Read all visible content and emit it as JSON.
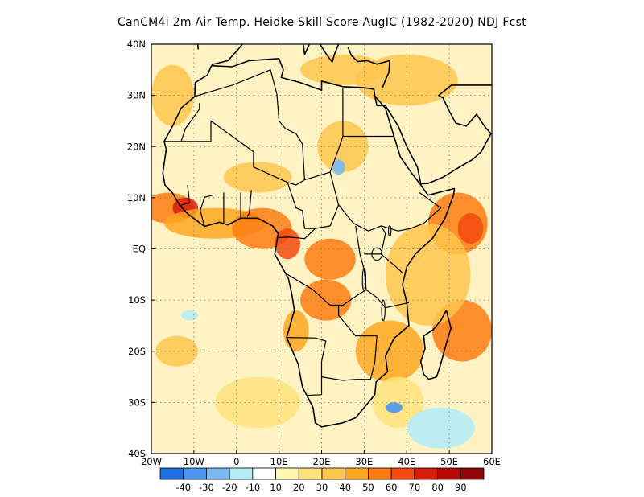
{
  "title": "CanCM4i  2m Air Temp. Heidke Skill Score AugIC (1982-2020) NDJ Fcst",
  "map": {
    "lon_range": [
      -20,
      60
    ],
    "lat_range": [
      -40,
      40
    ],
    "lat_labels": [
      {
        "value": 40,
        "label": "40N"
      },
      {
        "value": 30,
        "label": "30N"
      },
      {
        "value": 20,
        "label": "20N"
      },
      {
        "value": 10,
        "label": "10N"
      },
      {
        "value": 0,
        "label": "EQ"
      },
      {
        "value": -10,
        "label": "10S"
      },
      {
        "value": -20,
        "label": "20S"
      },
      {
        "value": -30,
        "label": "30S"
      },
      {
        "value": -40,
        "label": "40S"
      }
    ],
    "lon_labels": [
      {
        "value": -20,
        "label": "20W"
      },
      {
        "value": -10,
        "label": "10W"
      },
      {
        "value": 0,
        "label": "0"
      },
      {
        "value": 10,
        "label": "10E"
      },
      {
        "value": 20,
        "label": "20E"
      },
      {
        "value": 30,
        "label": "30E"
      },
      {
        "value": 40,
        "label": "40E"
      },
      {
        "value": 50,
        "label": "50E"
      },
      {
        "value": 60,
        "label": "60E"
      }
    ],
    "grid": "dotted",
    "coastline_color": "#000000"
  },
  "colorbar": {
    "colors": [
      "#1f6fe0",
      "#4a96ec",
      "#79b8f0",
      "#b4ecf6",
      "#ffffff",
      "#fff7b0",
      "#ffe27d",
      "#ffc64d",
      "#ffa620",
      "#ff7b13",
      "#f54a10",
      "#d91c0a",
      "#b50808",
      "#8e0606"
    ],
    "labels": [
      "-40",
      "-30",
      "-20",
      "-10",
      "10",
      "20",
      "30",
      "40",
      "50",
      "60",
      "70",
      "80",
      "90"
    ]
  },
  "skill_patches": [
    {
      "lon": -16,
      "lat": 8,
      "rx": 6,
      "ry": 3,
      "level": 5
    },
    {
      "lon": -12,
      "lat": 8,
      "rx": 3,
      "ry": 2,
      "level": 7
    },
    {
      "lon": -5,
      "lat": 5,
      "rx": 12,
      "ry": 3,
      "level": 4
    },
    {
      "lon": 6,
      "lat": 4,
      "rx": 7,
      "ry": 4,
      "level": 5
    },
    {
      "lon": 12,
      "lat": 1,
      "rx": 3,
      "ry": 3,
      "level": 6
    },
    {
      "lon": 22,
      "lat": -2,
      "rx": 6,
      "ry": 4,
      "level": 5
    },
    {
      "lon": 21,
      "lat": -10,
      "rx": 6,
      "ry": 4,
      "level": 5
    },
    {
      "lon": 14,
      "lat": -16,
      "rx": 3,
      "ry": 4,
      "level": 4
    },
    {
      "lon": 36,
      "lat": -20,
      "rx": 8,
      "ry": 6,
      "level": 4
    },
    {
      "lon": 53,
      "lat": -16,
      "rx": 7,
      "ry": 6,
      "level": 5
    },
    {
      "lon": 52,
      "lat": 5,
      "rx": 7,
      "ry": 6,
      "level": 5
    },
    {
      "lon": 55,
      "lat": 4,
      "rx": 3,
      "ry": 3,
      "level": 6
    },
    {
      "lon": 45,
      "lat": -5,
      "rx": 10,
      "ry": 10,
      "level": 3
    },
    {
      "lon": 25,
      "lat": 35,
      "rx": 10,
      "ry": 3,
      "level": 3
    },
    {
      "lon": 40,
      "lat": 33,
      "rx": 12,
      "ry": 5,
      "level": 3
    },
    {
      "lon": -15,
      "lat": 30,
      "rx": 5,
      "ry": 6,
      "level": 3
    },
    {
      "lon": 5,
      "lat": 14,
      "rx": 8,
      "ry": 3,
      "level": 3
    },
    {
      "lon": -14,
      "lat": -20,
      "rx": 5,
      "ry": 3,
      "level": 3
    },
    {
      "lon": 25,
      "lat": 20,
      "rx": 6,
      "ry": 5,
      "level": 3
    },
    {
      "lon": 5,
      "lat": -30,
      "rx": 10,
      "ry": 5,
      "level": 2
    },
    {
      "lon": 38,
      "lat": -30,
      "rx": 6,
      "ry": 5,
      "level": 2
    },
    {
      "lon": 48,
      "lat": -35,
      "rx": 8,
      "ry": 4,
      "level": -1
    },
    {
      "lon": 37,
      "lat": -31,
      "rx": 2,
      "ry": 1,
      "level": -3
    },
    {
      "lon": 24,
      "lat": 16,
      "rx": 1.5,
      "ry": 1.5,
      "level": -2
    },
    {
      "lon": -11,
      "lat": -13,
      "rx": 2,
      "ry": 1,
      "level": -1
    }
  ]
}
